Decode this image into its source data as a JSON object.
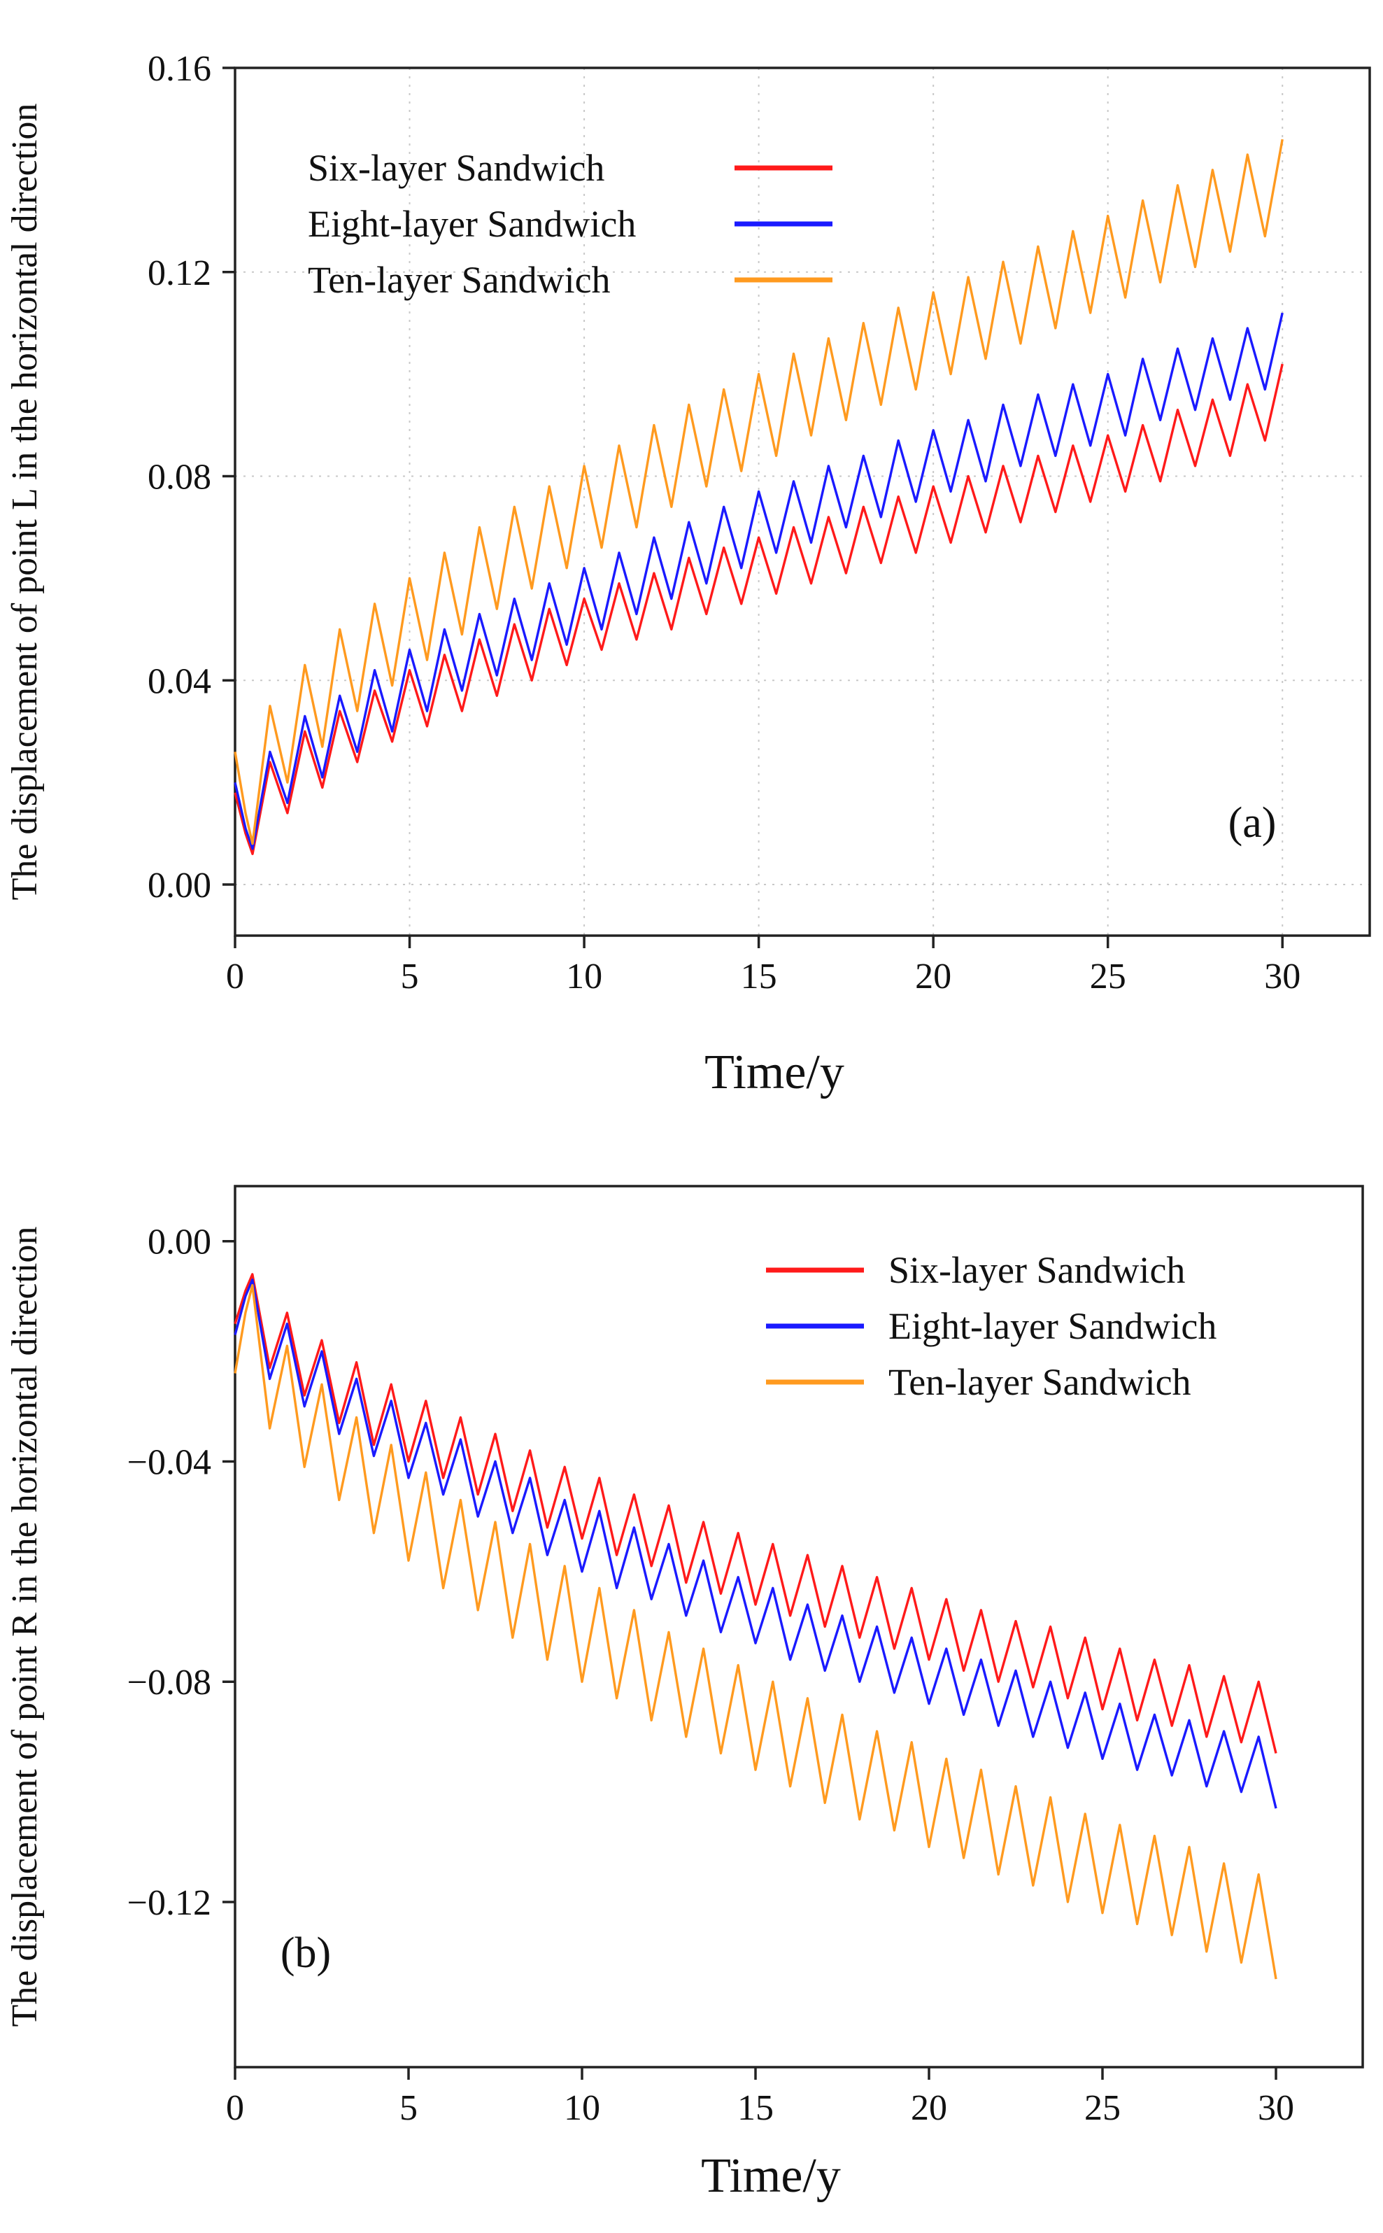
{
  "figure": {
    "panels": [
      "(a)",
      "(b)"
    ]
  },
  "chart_data": [
    {
      "type": "line",
      "panel_label": "(a)",
      "title": "",
      "xlabel": "Time/y",
      "ylabel": "The displacement of point L in the horizontal direction",
      "xlim": [
        0,
        32.5
      ],
      "ylim": [
        -0.01,
        0.16
      ],
      "xticks": [
        0,
        5,
        10,
        15,
        20,
        25,
        30
      ],
      "xtick_labels": [
        "0",
        "5",
        "10",
        "15",
        "20",
        "25",
        "30"
      ],
      "yticks": [
        0.0,
        0.04,
        0.08,
        0.12,
        0.16
      ],
      "ytick_labels": [
        "0.00",
        "0.04",
        "0.08",
        "0.12",
        "0.16"
      ],
      "grid": true,
      "legend_position": "top-left",
      "x": [
        0,
        0.3,
        0.5,
        1.0,
        1.5,
        2.0,
        2.5,
        3.0,
        3.5,
        4.0,
        4.5,
        5.0,
        5.5,
        6.0,
        6.5,
        7.0,
        7.5,
        8.0,
        8.5,
        9.0,
        9.5,
        10.0,
        10.5,
        11.0,
        11.5,
        12.0,
        12.5,
        13.0,
        13.5,
        14.0,
        14.5,
        15.0,
        15.5,
        16.0,
        16.5,
        17.0,
        17.5,
        18.0,
        18.5,
        19.0,
        19.5,
        20.0,
        20.5,
        21.0,
        21.5,
        22.0,
        22.5,
        23.0,
        23.5,
        24.0,
        24.5,
        25.0,
        25.5,
        26.0,
        26.5,
        27.0,
        27.5,
        28.0,
        28.5,
        29.0,
        29.5,
        30.0
      ],
      "series": [
        {
          "name": "Six-layer Sandwich",
          "color": "#ff1a1a",
          "values": [
            0.018,
            0.01,
            0.006,
            0.024,
            0.014,
            0.03,
            0.019,
            0.034,
            0.024,
            0.038,
            0.028,
            0.042,
            0.031,
            0.045,
            0.034,
            0.048,
            0.037,
            0.051,
            0.04,
            0.054,
            0.043,
            0.056,
            0.046,
            0.059,
            0.048,
            0.061,
            0.05,
            0.064,
            0.053,
            0.066,
            0.055,
            0.068,
            0.057,
            0.07,
            0.059,
            0.072,
            0.061,
            0.074,
            0.063,
            0.076,
            0.065,
            0.078,
            0.067,
            0.08,
            0.069,
            0.082,
            0.071,
            0.084,
            0.073,
            0.086,
            0.075,
            0.088,
            0.077,
            0.09,
            0.079,
            0.093,
            0.082,
            0.095,
            0.084,
            0.098,
            0.087,
            0.102
          ]
        },
        {
          "name": "Eight-layer Sandwich",
          "color": "#1a1aff",
          "values": [
            0.02,
            0.011,
            0.007,
            0.026,
            0.016,
            0.033,
            0.021,
            0.037,
            0.026,
            0.042,
            0.03,
            0.046,
            0.034,
            0.05,
            0.038,
            0.053,
            0.041,
            0.056,
            0.044,
            0.059,
            0.047,
            0.062,
            0.05,
            0.065,
            0.053,
            0.068,
            0.056,
            0.071,
            0.059,
            0.074,
            0.062,
            0.077,
            0.065,
            0.079,
            0.067,
            0.082,
            0.07,
            0.084,
            0.072,
            0.087,
            0.075,
            0.089,
            0.077,
            0.091,
            0.079,
            0.094,
            0.082,
            0.096,
            0.084,
            0.098,
            0.086,
            0.1,
            0.088,
            0.103,
            0.091,
            0.105,
            0.093,
            0.107,
            0.095,
            0.109,
            0.097,
            0.112
          ]
        },
        {
          "name": "Ten-layer Sandwich",
          "color": "#ff9a1f",
          "values": [
            0.026,
            0.014,
            0.008,
            0.035,
            0.02,
            0.043,
            0.027,
            0.05,
            0.034,
            0.055,
            0.039,
            0.06,
            0.044,
            0.065,
            0.049,
            0.07,
            0.054,
            0.074,
            0.058,
            0.078,
            0.062,
            0.082,
            0.066,
            0.086,
            0.07,
            0.09,
            0.074,
            0.094,
            0.078,
            0.097,
            0.081,
            0.1,
            0.084,
            0.104,
            0.088,
            0.107,
            0.091,
            0.11,
            0.094,
            0.113,
            0.097,
            0.116,
            0.1,
            0.119,
            0.103,
            0.122,
            0.106,
            0.125,
            0.109,
            0.128,
            0.112,
            0.131,
            0.115,
            0.134,
            0.118,
            0.137,
            0.121,
            0.14,
            0.124,
            0.143,
            0.127,
            0.146
          ]
        }
      ]
    },
    {
      "type": "line",
      "panel_label": "(b)",
      "title": "",
      "xlabel": "Time/y",
      "ylabel": "The displacement of point R in the horizontal direction",
      "xlim": [
        0,
        32.5
      ],
      "ylim": [
        -0.15,
        0.01
      ],
      "xticks": [
        0,
        5,
        10,
        15,
        20,
        25,
        30
      ],
      "xtick_labels": [
        "0",
        "5",
        "10",
        "15",
        "20",
        "25",
        "30"
      ],
      "yticks": [
        0.0,
        -0.04,
        -0.08,
        -0.12
      ],
      "ytick_labels": [
        "0.00",
        "−0.04",
        "−0.08",
        "−0.12"
      ],
      "grid": false,
      "legend_position": "top-right",
      "x": [
        0,
        0.3,
        0.5,
        1.0,
        1.5,
        2.0,
        2.5,
        3.0,
        3.5,
        4.0,
        4.5,
        5.0,
        5.5,
        6.0,
        6.5,
        7.0,
        7.5,
        8.0,
        8.5,
        9.0,
        9.5,
        10.0,
        10.5,
        11.0,
        11.5,
        12.0,
        12.5,
        13.0,
        13.5,
        14.0,
        14.5,
        15.0,
        15.5,
        16.0,
        16.5,
        17.0,
        17.5,
        18.0,
        18.5,
        19.0,
        19.5,
        20.0,
        20.5,
        21.0,
        21.5,
        22.0,
        22.5,
        23.0,
        23.5,
        24.0,
        24.5,
        25.0,
        25.5,
        26.0,
        26.5,
        27.0,
        27.5,
        28.0,
        28.5,
        29.0,
        29.5,
        30.0
      ],
      "series": [
        {
          "name": "Six-layer Sandwich",
          "color": "#ff1a1a",
          "values": [
            -0.015,
            -0.009,
            -0.006,
            -0.023,
            -0.013,
            -0.028,
            -0.018,
            -0.033,
            -0.022,
            -0.037,
            -0.026,
            -0.04,
            -0.029,
            -0.043,
            -0.032,
            -0.046,
            -0.035,
            -0.049,
            -0.038,
            -0.052,
            -0.041,
            -0.054,
            -0.043,
            -0.057,
            -0.046,
            -0.059,
            -0.048,
            -0.062,
            -0.051,
            -0.064,
            -0.053,
            -0.066,
            -0.055,
            -0.068,
            -0.057,
            -0.07,
            -0.059,
            -0.072,
            -0.061,
            -0.074,
            -0.063,
            -0.076,
            -0.065,
            -0.078,
            -0.067,
            -0.08,
            -0.069,
            -0.081,
            -0.07,
            -0.083,
            -0.072,
            -0.085,
            -0.074,
            -0.087,
            -0.076,
            -0.088,
            -0.077,
            -0.09,
            -0.079,
            -0.091,
            -0.08,
            -0.093
          ]
        },
        {
          "name": "Eight-layer Sandwich",
          "color": "#1a1aff",
          "values": [
            -0.017,
            -0.01,
            -0.007,
            -0.025,
            -0.015,
            -0.03,
            -0.02,
            -0.035,
            -0.025,
            -0.039,
            -0.029,
            -0.043,
            -0.033,
            -0.046,
            -0.036,
            -0.05,
            -0.04,
            -0.053,
            -0.043,
            -0.057,
            -0.047,
            -0.06,
            -0.049,
            -0.063,
            -0.052,
            -0.065,
            -0.055,
            -0.068,
            -0.058,
            -0.071,
            -0.061,
            -0.073,
            -0.063,
            -0.076,
            -0.066,
            -0.078,
            -0.068,
            -0.08,
            -0.07,
            -0.082,
            -0.072,
            -0.084,
            -0.074,
            -0.086,
            -0.076,
            -0.088,
            -0.078,
            -0.09,
            -0.08,
            -0.092,
            -0.082,
            -0.094,
            -0.084,
            -0.096,
            -0.086,
            -0.097,
            -0.087,
            -0.099,
            -0.089,
            -0.1,
            -0.09,
            -0.103
          ]
        },
        {
          "name": "Ten-layer Sandwich",
          "color": "#ff9a1f",
          "values": [
            -0.024,
            -0.013,
            -0.008,
            -0.034,
            -0.019,
            -0.041,
            -0.026,
            -0.047,
            -0.032,
            -0.053,
            -0.037,
            -0.058,
            -0.042,
            -0.063,
            -0.047,
            -0.067,
            -0.051,
            -0.072,
            -0.055,
            -0.076,
            -0.059,
            -0.08,
            -0.063,
            -0.083,
            -0.067,
            -0.087,
            -0.071,
            -0.09,
            -0.074,
            -0.093,
            -0.077,
            -0.096,
            -0.08,
            -0.099,
            -0.083,
            -0.102,
            -0.086,
            -0.105,
            -0.089,
            -0.107,
            -0.091,
            -0.11,
            -0.094,
            -0.112,
            -0.096,
            -0.115,
            -0.099,
            -0.117,
            -0.101,
            -0.12,
            -0.104,
            -0.122,
            -0.106,
            -0.124,
            -0.108,
            -0.126,
            -0.11,
            -0.129,
            -0.113,
            -0.131,
            -0.115,
            -0.134
          ]
        }
      ]
    }
  ]
}
